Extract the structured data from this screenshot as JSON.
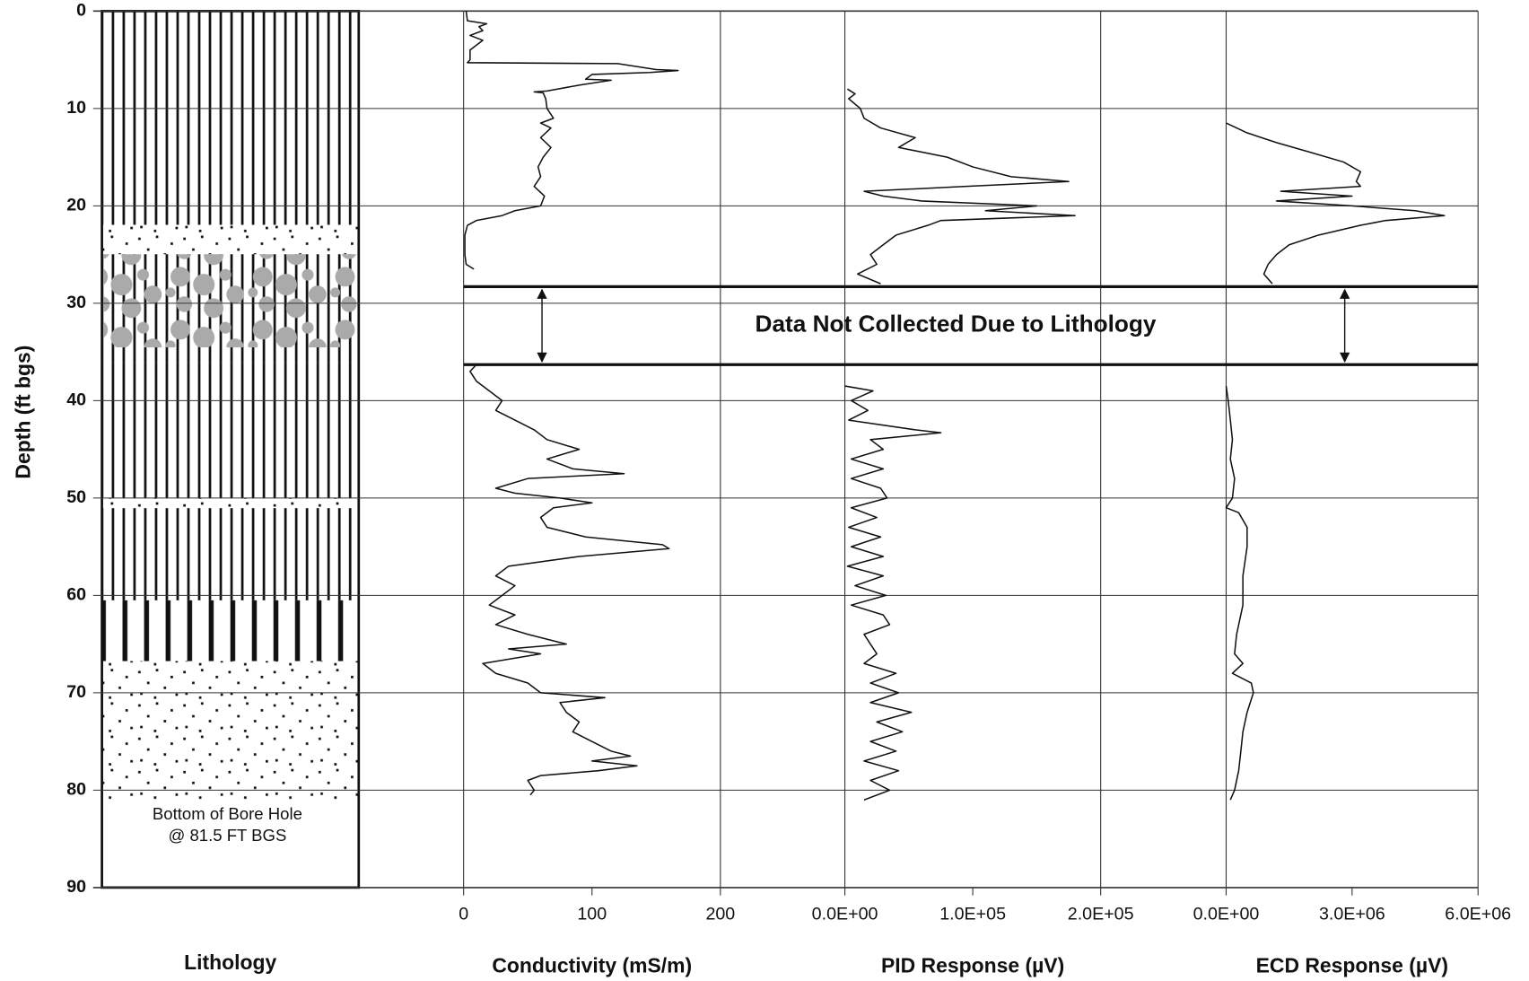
{
  "depth_axis": {
    "label": "Depth (ft bgs)",
    "ylim": [
      0,
      90
    ],
    "yticks": [
      0,
      10,
      20,
      30,
      40,
      50,
      60,
      70,
      80,
      90
    ]
  },
  "lithology": {
    "label": "Lithology",
    "note": [
      "Bottom of Bore Hole",
      "@ 81.5 FT BGS"
    ]
  },
  "annotation": {
    "text": "Data Not Collected Due to Lithology",
    "interval": [
      28.3,
      36.3
    ]
  },
  "chart_data": [
    {
      "type": "line",
      "xlabel": "Conductivity (mS/m)",
      "xlim": [
        0,
        200
      ],
      "xticks": [
        0,
        100,
        200
      ],
      "color": "#111111",
      "depth": [
        0,
        1,
        1.3,
        1.6,
        2,
        2.5,
        3,
        4,
        5,
        5.3,
        5.4,
        6,
        6.1,
        6.3,
        6.5,
        7,
        7.1,
        7.6,
        8.2,
        8.3,
        8.4,
        9,
        10,
        11,
        11.5,
        12,
        13,
        14,
        15,
        16,
        17,
        18,
        19,
        20,
        20.5,
        21,
        21.5,
        22,
        23,
        25,
        26,
        26.5,
        null,
        36.3,
        37,
        38,
        39,
        40,
        41,
        42,
        43,
        44,
        45,
        46,
        47,
        47.5,
        48,
        49,
        49.5,
        50,
        50.5,
        51,
        52,
        53,
        54,
        54.8,
        55.2,
        56,
        57,
        58,
        59,
        60,
        61,
        62,
        63,
        64,
        65,
        65.5,
        66,
        67,
        68,
        69,
        70,
        70.5,
        71,
        72,
        73,
        74,
        75,
        76,
        76.5,
        77,
        77.5,
        78,
        78.5,
        79,
        80,
        80.5
      ],
      "values": [
        2,
        3,
        18,
        12,
        15,
        5,
        15,
        5,
        5,
        3,
        120,
        150,
        167,
        145,
        100,
        95,
        115,
        90,
        65,
        55,
        62,
        64,
        65,
        70,
        60,
        68,
        60,
        68,
        62,
        58,
        60,
        55,
        63,
        60,
        40,
        30,
        10,
        3,
        1,
        1,
        2,
        8,
        null,
        10,
        5,
        10,
        20,
        30,
        25,
        40,
        55,
        65,
        90,
        65,
        85,
        125,
        50,
        25,
        40,
        75,
        100,
        70,
        60,
        65,
        95,
        155,
        160,
        90,
        35,
        25,
        40,
        30,
        20,
        40,
        25,
        50,
        80,
        35,
        60,
        15,
        25,
        50,
        60,
        110,
        75,
        80,
        90,
        85,
        100,
        115,
        130,
        100,
        135,
        105,
        60,
        50,
        55,
        52
      ]
    },
    {
      "type": "line",
      "xlabel": "PID Response (µV)",
      "xlim": [
        0,
        200000
      ],
      "xticks": [
        {
          "value": 0,
          "label": "0.0E+00"
        },
        {
          "value": 100000,
          "label": "1.0E+05"
        },
        {
          "value": 200000,
          "label": "2.0E+05"
        }
      ],
      "color": "#111111",
      "depth": [
        8,
        8.5,
        9,
        10,
        11,
        12,
        13,
        14,
        15,
        16,
        17,
        17.5,
        18,
        18.5,
        19,
        19.5,
        20,
        20.5,
        21,
        21.5,
        22,
        23,
        24,
        25,
        26,
        27,
        28,
        null,
        38.5,
        39,
        40,
        41,
        42,
        43,
        43.3,
        44,
        45,
        46,
        47,
        48,
        49,
        50,
        51,
        52,
        53,
        54,
        55,
        56,
        57,
        58,
        59,
        60,
        61,
        62,
        63,
        64,
        65,
        66,
        67,
        68,
        69,
        70,
        71,
        72,
        73,
        74,
        75,
        76,
        77,
        78,
        79,
        80,
        81
      ],
      "values": [
        2000,
        8000,
        3000,
        12000,
        15000,
        28000,
        55000,
        42000,
        80000,
        100000,
        130000,
        175000,
        95000,
        15000,
        30000,
        60000,
        150000,
        110000,
        180000,
        75000,
        65000,
        40000,
        30000,
        20000,
        25000,
        10000,
        28000,
        null,
        0,
        22000,
        5000,
        18000,
        3000,
        55000,
        75000,
        20000,
        30000,
        5000,
        30000,
        5000,
        28000,
        33000,
        5000,
        25000,
        3000,
        28000,
        5000,
        30000,
        2000,
        30000,
        8000,
        32000,
        5000,
        30000,
        35000,
        15000,
        20000,
        25000,
        15000,
        40000,
        20000,
        42000,
        20000,
        52000,
        25000,
        45000,
        20000,
        40000,
        15000,
        42000,
        20000,
        35000,
        15000
      ]
    },
    {
      "type": "line",
      "xlabel": "ECD Response (µV)",
      "xlim": [
        0,
        6000000
      ],
      "xticks": [
        {
          "value": 0,
          "label": "0.0E+00"
        },
        {
          "value": 3000000,
          "label": "3.0E+06"
        },
        {
          "value": 6000000,
          "label": "6.0E+06"
        }
      ],
      "color": "#111111",
      "depth": [
        11.5,
        12.5,
        13.5,
        14.5,
        15.5,
        16.5,
        17.5,
        18,
        18.5,
        19,
        19.5,
        20,
        20.5,
        21,
        21.5,
        22,
        23,
        24,
        25,
        26,
        27,
        28,
        null,
        38.5,
        40,
        42,
        44,
        46,
        48,
        50,
        51,
        51.5,
        53,
        55,
        58,
        61,
        64,
        66,
        67,
        68,
        69,
        70,
        72,
        74,
        76,
        78,
        80,
        81
      ],
      "values": [
        0,
        500000,
        1200000,
        2000000,
        2800000,
        3200000,
        3100000,
        3200000,
        1300000,
        3000000,
        1200000,
        3000000,
        4500000,
        5200000,
        3800000,
        3200000,
        2200000,
        1500000,
        1200000,
        1000000,
        900000,
        1100000,
        null,
        0,
        50000,
        100000,
        150000,
        100000,
        200000,
        150000,
        0,
        300000,
        500000,
        500000,
        400000,
        400000,
        250000,
        200000,
        400000,
        150000,
        600000,
        650000,
        500000,
        400000,
        350000,
        300000,
        200000,
        100000
      ]
    }
  ]
}
